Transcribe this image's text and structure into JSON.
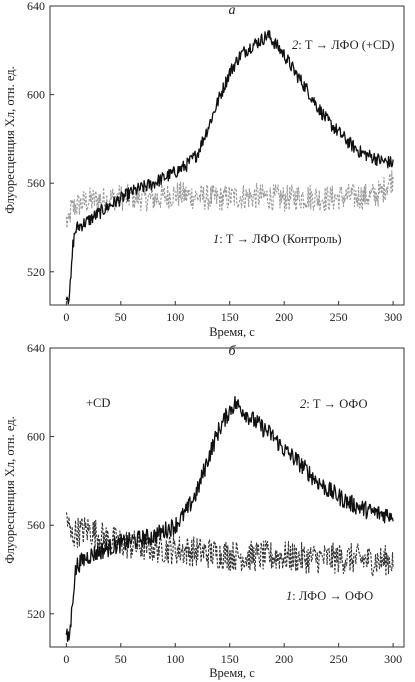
{
  "chart_data": [
    {
      "type": "line",
      "panel_label": "а",
      "xlabel": "Время, с",
      "ylabel": "Флуоресценция Хл, отн. ед.",
      "xlim": [
        -15,
        310
      ],
      "ylim": [
        505,
        640
      ],
      "xticks": [
        0,
        50,
        100,
        150,
        200,
        250,
        300
      ],
      "yticks": [
        520,
        560,
        600,
        640
      ],
      "series": [
        {
          "name": "2: Т → ЛФО (+CD)",
          "num": "2",
          "rest": ": Т → ЛФО (+CD)",
          "color": "#111111",
          "style": "solid",
          "noise": 3,
          "x": [
            0,
            2,
            4,
            6,
            8,
            10,
            20,
            40,
            60,
            80,
            100,
            110,
            120,
            130,
            140,
            150,
            160,
            170,
            180,
            185,
            190,
            200,
            210,
            220,
            230,
            240,
            250,
            260,
            270,
            280,
            290,
            300
          ],
          "values": [
            510,
            508,
            515,
            532,
            538,
            540,
            543,
            550,
            556,
            560,
            565,
            568,
            573,
            585,
            598,
            610,
            618,
            622,
            625,
            627,
            624,
            618,
            610,
            603,
            595,
            588,
            583,
            578,
            574,
            572,
            570,
            569
          ]
        },
        {
          "name": "1: Т → ЛФО (Контроль)",
          "num": "1",
          "rest": ": Т → ЛФО (Контроль)",
          "color": "#9a9a9a",
          "style": "dashed",
          "noise": 6,
          "x": [
            0,
            2,
            4,
            10,
            20,
            40,
            60,
            80,
            100,
            120,
            140,
            160,
            180,
            200,
            220,
            240,
            260,
            280,
            290,
            295,
            300
          ],
          "values": [
            543,
            540,
            548,
            550,
            552,
            553,
            554,
            553,
            555,
            554,
            553,
            554,
            554,
            553,
            554,
            553,
            554,
            554,
            556,
            560,
            562
          ]
        }
      ],
      "annotations": []
    },
    {
      "type": "line",
      "panel_label": "б",
      "xlabel": "Время, с",
      "ylabel": "Флуоресценция Хл, отн. ед.",
      "xlim": [
        -15,
        310
      ],
      "ylim": [
        505,
        640
      ],
      "xticks": [
        0,
        50,
        100,
        150,
        200,
        250,
        300
      ],
      "yticks": [
        520,
        560,
        600,
        640
      ],
      "series": [
        {
          "name": "2: Т → ОФО",
          "num": "2",
          "rest": ": Т → ОФО",
          "color": "#111111",
          "style": "solid",
          "noise": 4,
          "x": [
            0,
            2,
            4,
            6,
            8,
            10,
            20,
            40,
            60,
            80,
            100,
            110,
            120,
            130,
            140,
            150,
            155,
            160,
            170,
            180,
            190,
            200,
            210,
            220,
            230,
            240,
            250,
            260,
            270,
            280,
            290,
            300
          ],
          "values": [
            510,
            508,
            515,
            528,
            538,
            542,
            546,
            550,
            553,
            555,
            560,
            566,
            575,
            590,
            603,
            612,
            615,
            613,
            608,
            604,
            600,
            594,
            590,
            585,
            580,
            576,
            573,
            570,
            568,
            566,
            565,
            565
          ]
        },
        {
          "name": "1: ЛФО → ОФО",
          "num": "1",
          "rest": ": ЛФО → ОФО",
          "color": "#333333",
          "style": "dashed",
          "noise": 7,
          "x": [
            0,
            2,
            4,
            10,
            20,
            40,
            60,
            80,
            100,
            120,
            140,
            160,
            180,
            200,
            220,
            240,
            260,
            280,
            300
          ],
          "values": [
            565,
            560,
            555,
            557,
            558,
            553,
            551,
            550,
            549,
            548,
            547,
            546,
            546,
            546,
            545,
            545,
            545,
            544,
            544
          ]
        }
      ],
      "annotations": [
        "+CD"
      ]
    }
  ]
}
